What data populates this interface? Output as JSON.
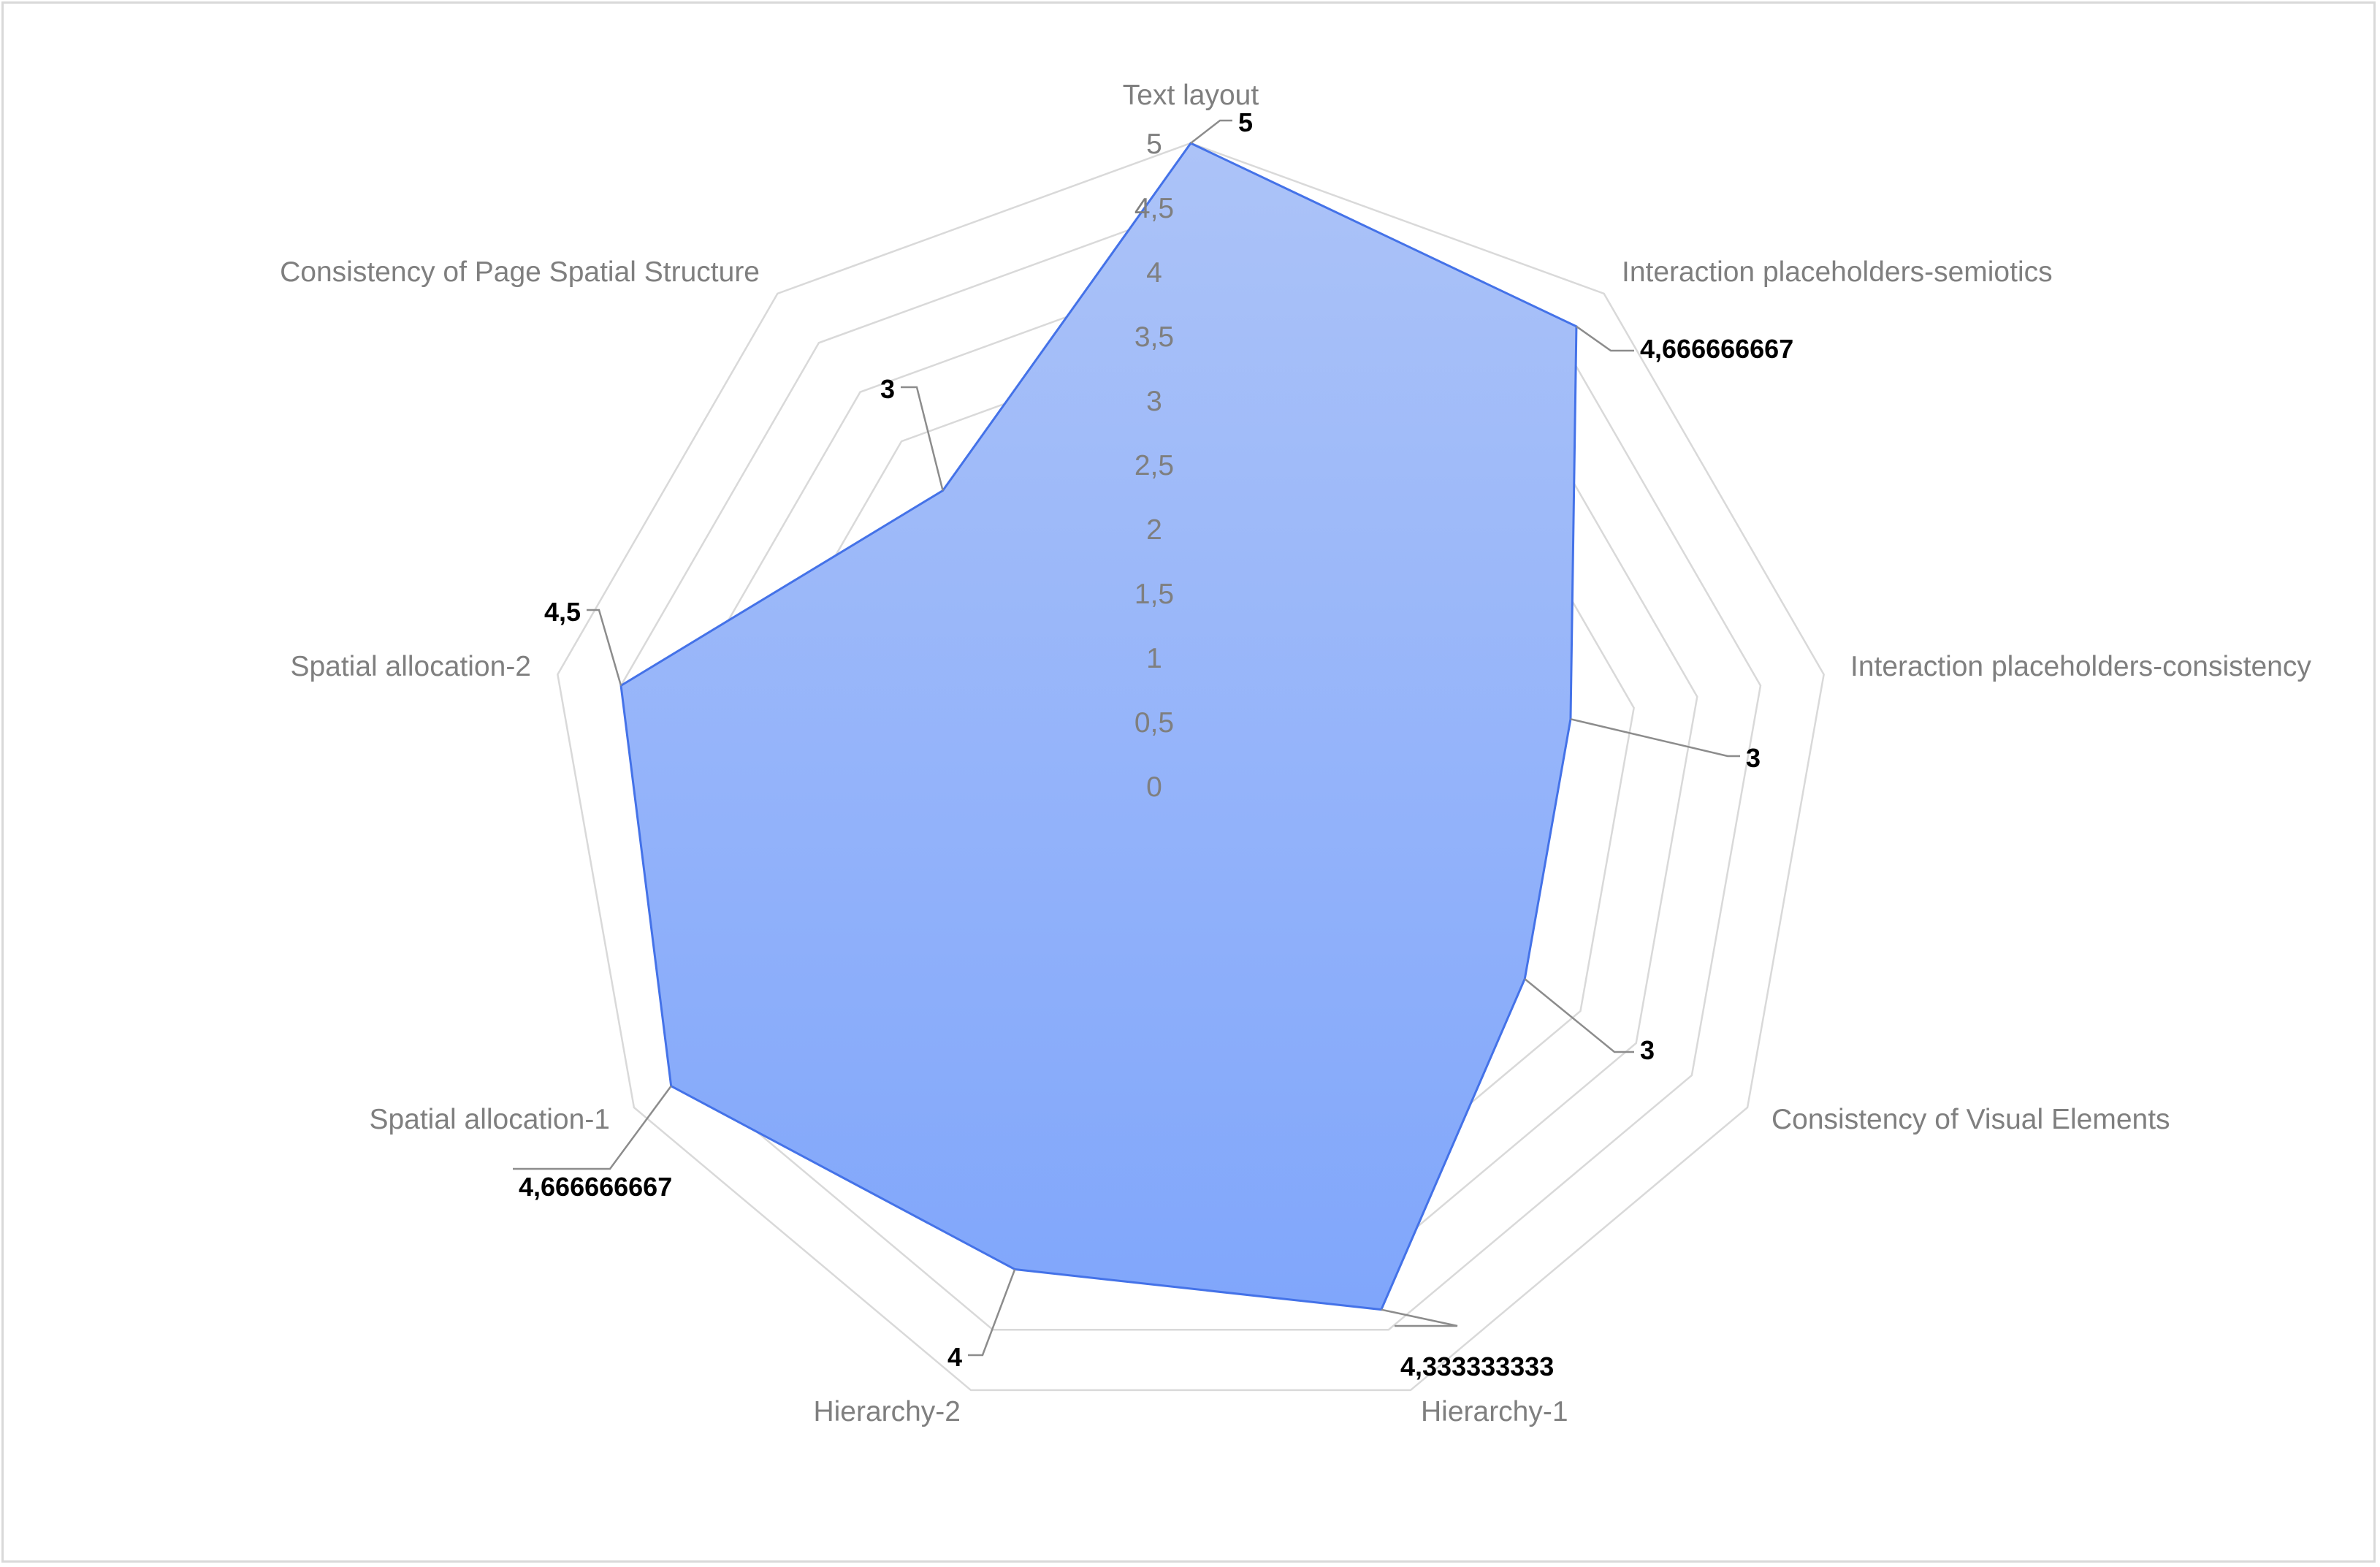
{
  "chart_data": {
    "type": "radar",
    "categories": [
      "Text layout",
      "Interaction placeholders-semiotics",
      "Interaction placeholders-consistency",
      "Consistency of Visual Elements",
      "Hierarchy-1",
      "Hierarchy-2",
      "Spatial allocation-1",
      "Spatial allocation-2",
      "Consistency of Page Spatial Structure"
    ],
    "values": [
      5,
      4.666666667,
      3,
      3,
      4.333333333,
      4,
      4.666666667,
      4.5,
      3
    ],
    "data_labels": [
      "5",
      "4,666666667",
      "3",
      "3",
      "4,333333333",
      "4",
      "4,666666667",
      "4,5",
      "3"
    ],
    "rlim": [
      0,
      5
    ],
    "ticks": [
      "0",
      "0,5",
      "1",
      "1,5",
      "2",
      "2,5",
      "3",
      "3,5",
      "4",
      "4,5",
      "5"
    ],
    "grid": true,
    "legend": "none",
    "colors": {
      "fill_top": "#acc3f8",
      "fill_bottom": "#80a6fb",
      "line": "#4472e8",
      "grid": "#d9d9d9"
    }
  }
}
